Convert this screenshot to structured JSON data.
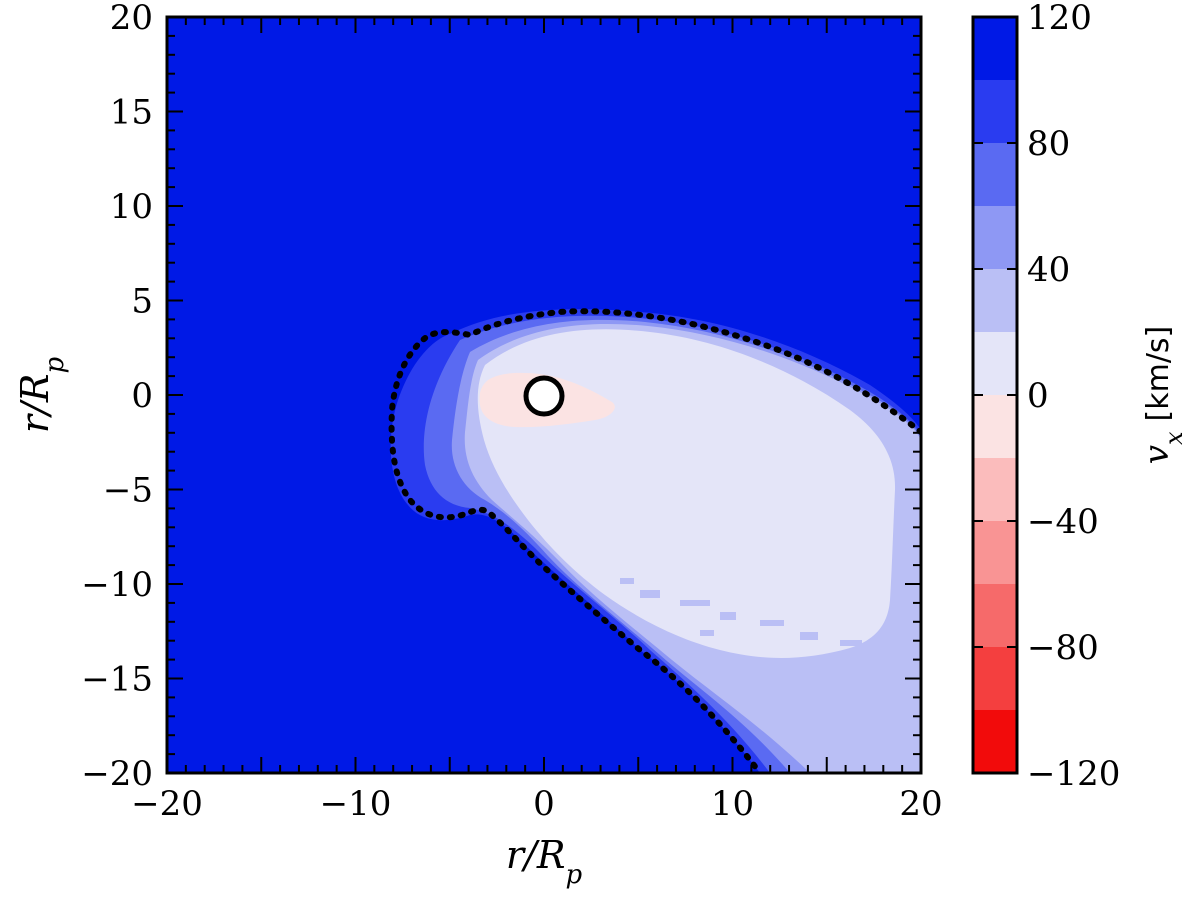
{
  "chart_data": {
    "type": "heatmap",
    "title": "",
    "xlabel": "r/R_p",
    "ylabel": "r/R_p",
    "xlim": [
      -20,
      20
    ],
    "ylim": [
      -20,
      20
    ],
    "xticks": [
      -20,
      -10,
      0,
      10,
      20
    ],
    "yticks": [
      20,
      15,
      10,
      5,
      0,
      -5,
      -10,
      -15,
      -20
    ],
    "x_tick_labels": [
      "−20",
      "−10",
      "0",
      "10",
      "20"
    ],
    "y_tick_labels": [
      "20",
      "15",
      "10",
      "5",
      "0",
      "−5",
      "−10",
      "−15",
      "−20"
    ],
    "grid": false,
    "colorbar": {
      "label_var": "v",
      "label_sub": "x",
      "label_unit": "[km/s]",
      "range": [
        -120,
        120
      ],
      "tick_labels": [
        "120",
        "80",
        "40",
        "0",
        "−40",
        "−80",
        "−120"
      ],
      "tick_values": [
        120,
        80,
        40,
        0,
        -40,
        -80,
        -120
      ],
      "levels_top_to_bottom": [
        {
          "from": 100,
          "to": 120,
          "color": "#0019e6"
        },
        {
          "from": 80,
          "to": 100,
          "color": "#2a3cf0"
        },
        {
          "from": 60,
          "to": 80,
          "color": "#5a6af2"
        },
        {
          "from": 40,
          "to": 60,
          "color": "#8e98f4"
        },
        {
          "from": 20,
          "to": 40,
          "color": "#babff5"
        },
        {
          "from": 0,
          "to": 20,
          "color": "#e4e5f8"
        },
        {
          "from": -20,
          "to": 0,
          "color": "#fbe3e3"
        },
        {
          "from": -40,
          "to": -20,
          "color": "#fbbcbc"
        },
        {
          "from": -60,
          "to": -40,
          "color": "#f99494"
        },
        {
          "from": -80,
          "to": -60,
          "color": "#f66a6a"
        },
        {
          "from": -100,
          "to": -80,
          "color": "#f43f3f"
        },
        {
          "from": -120,
          "to": -100,
          "color": "#f20b0b"
        }
      ]
    },
    "planet": {
      "x": 0,
      "y": 0,
      "radius": 1.0,
      "fill": "#ffffff",
      "stroke": "#000000"
    },
    "regions": [
      {
        "name": "background",
        "vx_level": 110,
        "color": "#0019e6"
      },
      {
        "name": "tail-outer",
        "vx_level": 90,
        "color": "#2a3cf0"
      },
      {
        "name": "tail-mid",
        "vx_level": 50,
        "color": "#8e98f4"
      },
      {
        "name": "tail-lavender",
        "vx_level": 30,
        "color": "#babff5"
      },
      {
        "name": "tail-core",
        "vx_level": 10,
        "color": "#e4e5f8"
      },
      {
        "name": "planet-pink",
        "vx_level": -10,
        "color": "#fbe3e3"
      }
    ]
  }
}
